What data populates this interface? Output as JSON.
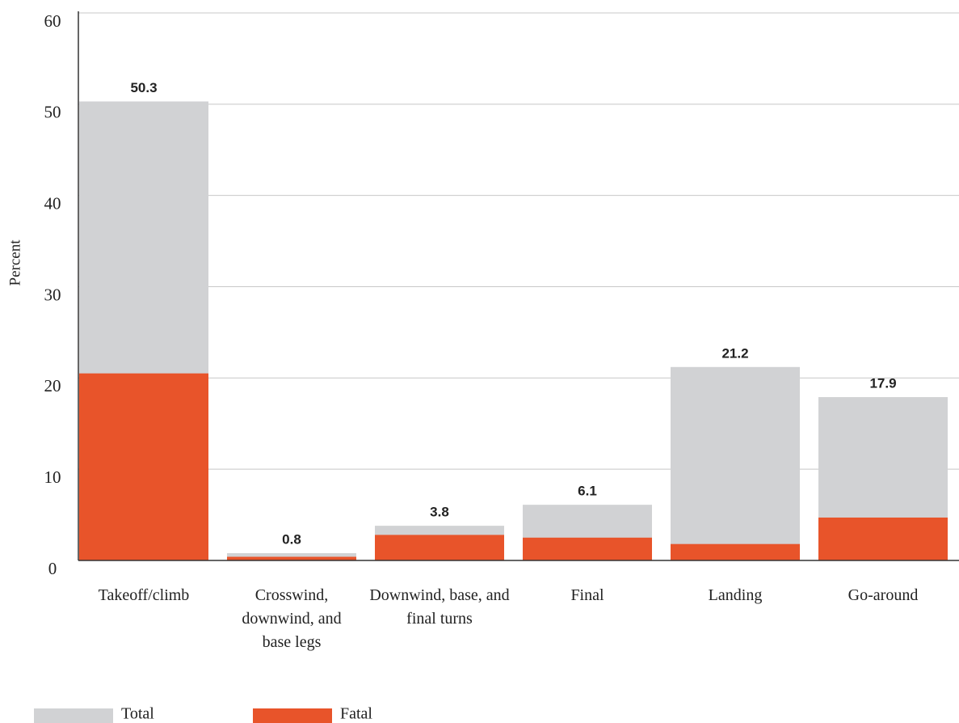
{
  "chart_data": {
    "type": "bar",
    "y_label": "Percent",
    "categories": [
      "Takeoff/climb",
      "Crosswind, downwind, and base legs",
      "Downwind, base, and final turns",
      "Final",
      "Landing",
      "Go-around"
    ],
    "series": [
      {
        "name": "Total",
        "color": "#d1d2d4",
        "values": [
          50.3,
          0.8,
          3.8,
          6.1,
          21.2,
          17.9
        ]
      },
      {
        "name": "Fatal",
        "color": "#e8542a",
        "values": [
          20.5,
          0.4,
          2.8,
          2.5,
          1.8,
          4.7
        ]
      }
    ],
    "data_labels_series": "Total",
    "ylim": [
      0,
      60
    ],
    "yticks": [
      0,
      10,
      20,
      30,
      40,
      50,
      60
    ],
    "grid": true,
    "legend": "bottom-left"
  }
}
